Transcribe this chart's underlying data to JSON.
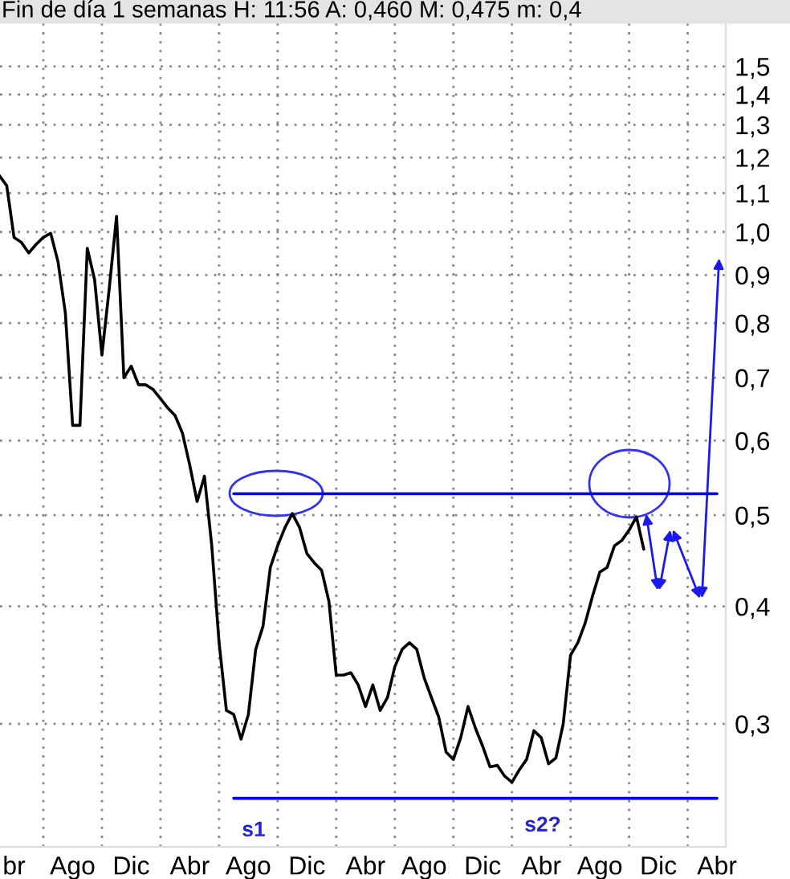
{
  "chart_data": {
    "type": "line",
    "title": "Fin de día 1 semanas H: 11:56 A: 0,460 M: 0,475 m: 0,4",
    "log": "y",
    "grid": true,
    "marker": "none",
    "line_style": "solid",
    "categories": [
      null,
      null,
      "br",
      null,
      null,
      null,
      null,
      null,
      null,
      null,
      "Ago",
      null,
      null,
      null,
      null,
      null,
      null,
      null,
      "Dic",
      null,
      null,
      null,
      null,
      null,
      null,
      null,
      "Abr",
      null,
      null,
      null,
      null,
      null,
      null,
      null,
      "Ago",
      null,
      null,
      null,
      null,
      null,
      null,
      null,
      "Dic",
      null,
      null,
      null,
      null,
      null,
      null,
      null,
      "Abr",
      null,
      null,
      null,
      null,
      null,
      null,
      null,
      "Ago",
      null,
      null,
      null,
      null,
      null,
      null,
      null,
      "Dic",
      null,
      null,
      null,
      null,
      null,
      null,
      null,
      "Abr",
      null,
      null,
      null,
      null,
      null,
      null,
      null,
      "Ago",
      null,
      null,
      null,
      null,
      null,
      null,
      null,
      "Dic",
      null,
      null,
      null,
      null,
      null,
      null,
      null,
      "Abr",
      null
    ],
    "ylim": [
      0.222,
      1.67
    ],
    "yticks": [
      {
        "value": 0.3,
        "label": "0,3"
      },
      {
        "value": 0.4,
        "label": "0,4"
      },
      {
        "value": 0.5,
        "label": "0,5"
      },
      {
        "value": 0.6,
        "label": "0,6"
      },
      {
        "value": 0.7,
        "label": "0,7"
      },
      {
        "value": 0.8,
        "label": "0,8"
      },
      {
        "value": 0.9,
        "label": "0,9"
      },
      {
        "value": 1.0,
        "label": "1,0"
      },
      {
        "value": 1.1,
        "label": "1,1"
      },
      {
        "value": 1.2,
        "label": "1,2"
      },
      {
        "value": 1.3,
        "label": "1,3"
      },
      {
        "value": 1.4,
        "label": "1,4"
      },
      {
        "value": 1.5,
        "label": "1,5"
      }
    ],
    "annotations": [
      "s1",
      "s2?"
    ],
    "series": [
      {
        "color": "#000000",
        "values": [
          1.148,
          1.12,
          0.987,
          0.975,
          0.95,
          0.97,
          0.987,
          0.997,
          0.93,
          0.821,
          0.623,
          0.623,
          0.961,
          0.89,
          0.74,
          0.871,
          1.039,
          0.7,
          0.72,
          0.688,
          0.688,
          0.68,
          0.665,
          0.65,
          0.638,
          0.611,
          0.565,
          0.517,
          0.55,
          0.464,
          0.366,
          0.31,
          0.307,
          0.289,
          0.307,
          0.36,
          0.381,
          0.44,
          0.464,
          0.485,
          0.502,
          0.485,
          0.455,
          0.445,
          0.437,
          0.405,
          0.338,
          0.338,
          0.34,
          0.33,
          0.313,
          0.33,
          0.31,
          0.32,
          0.345,
          0.36,
          0.366,
          0.36,
          0.336,
          0.32,
          0.305,
          0.28,
          0.275,
          0.29,
          0.313,
          0.297,
          0.284,
          0.27,
          0.271,
          0.264,
          0.26,
          0.268,
          0.275,
          0.295,
          0.29,
          0.272,
          0.276,
          0.3,
          0.355,
          0.366,
          0.384,
          0.41,
          0.435,
          0.44,
          0.464,
          0.47,
          0.482,
          0.498,
          0.46,
          null,
          null,
          null,
          null,
          null,
          null,
          null,
          null,
          null,
          null,
          null
        ]
      },
      {
        "color": "#0000ee",
        "values": [
          null,
          null,
          null,
          null,
          null,
          null,
          null,
          null,
          null,
          null,
          null,
          null,
          null,
          null,
          null,
          null,
          null,
          null,
          null,
          null,
          null,
          null,
          null,
          null,
          null,
          null,
          null,
          null,
          null,
          null,
          null,
          null,
          0.527,
          0.527,
          0.527,
          0.527,
          0.527,
          0.527,
          0.527,
          0.527,
          0.527,
          0.527,
          0.527,
          0.527,
          0.527,
          0.527,
          0.527,
          0.527,
          0.527,
          0.527,
          0.527,
          0.527,
          0.527,
          0.527,
          0.527,
          0.527,
          0.527,
          0.527,
          0.527,
          0.527,
          0.527,
          0.527,
          0.527,
          0.527,
          0.527,
          0.527,
          0.527,
          0.527,
          0.527,
          0.527,
          0.527,
          0.527,
          0.527,
          0.527,
          0.527,
          0.527,
          0.527,
          0.527,
          0.527,
          0.527,
          0.527,
          0.527,
          0.527,
          0.527,
          0.527,
          0.527,
          0.527,
          0.527,
          0.527,
          0.527,
          0.527,
          0.527,
          0.527,
          0.527,
          0.527,
          0.527,
          0.527,
          0.527,
          0.527,
          null
        ]
      },
      {
        "color": "#0000ee",
        "values": [
          null,
          null,
          null,
          null,
          null,
          null,
          null,
          null,
          null,
          null,
          null,
          null,
          null,
          null,
          null,
          null,
          null,
          null,
          null,
          null,
          null,
          null,
          null,
          null,
          null,
          null,
          null,
          null,
          null,
          null,
          null,
          null,
          0.25,
          0.25,
          0.25,
          0.25,
          0.25,
          0.25,
          0.25,
          0.25,
          0.25,
          0.25,
          0.25,
          0.25,
          0.25,
          0.25,
          0.25,
          0.25,
          0.25,
          0.25,
          0.25,
          0.25,
          0.25,
          0.25,
          0.25,
          0.25,
          0.25,
          0.25,
          0.25,
          0.25,
          0.25,
          0.25,
          0.25,
          0.25,
          0.25,
          0.25,
          0.25,
          0.25,
          0.25,
          0.25,
          0.25,
          0.25,
          0.25,
          0.25,
          0.25,
          0.25,
          0.25,
          0.25,
          0.25,
          0.25,
          0.25,
          0.25,
          0.25,
          0.25,
          0.25,
          0.25,
          0.25,
          0.25,
          0.25,
          0.25,
          0.25,
          0.25,
          0.25,
          0.25,
          0.25,
          0.25,
          0.25,
          0.25,
          0.25,
          null
        ]
      }
    ]
  }
}
